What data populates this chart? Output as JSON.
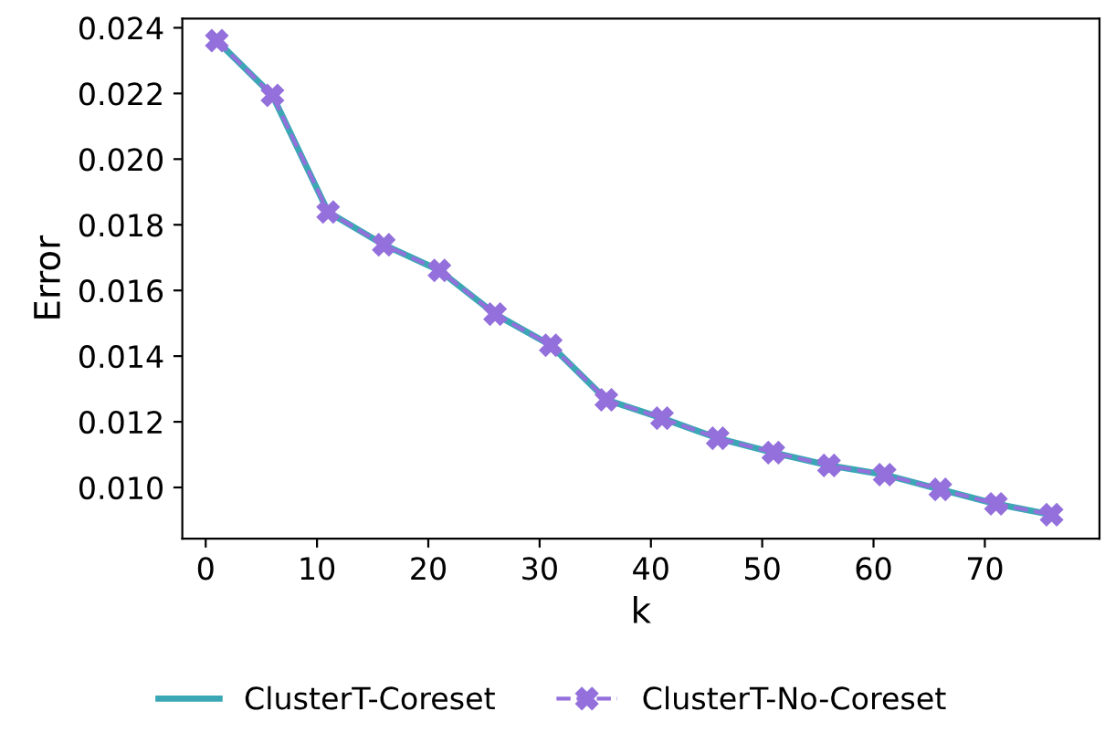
{
  "chart_data": {
    "type": "line",
    "xlabel": "k",
    "ylabel": "Error",
    "x": [
      1,
      6,
      11,
      16,
      21,
      26,
      31,
      36,
      41,
      46,
      51,
      56,
      61,
      66,
      71,
      76
    ],
    "series": [
      {
        "name": "ClusterT-Coreset",
        "color": "#3ba7b5",
        "marker": "none",
        "line_style": "solid",
        "values": [
          0.02361,
          0.02194,
          0.01839,
          0.01739,
          0.01661,
          0.01528,
          0.01433,
          0.01267,
          0.01211,
          0.0115,
          0.01106,
          0.01067,
          0.01039,
          0.00994,
          0.0095,
          0.00917
        ]
      },
      {
        "name": "ClusterT-No-Coreset",
        "color": "#9370db",
        "marker": "cross",
        "line_style": "dashed",
        "values": [
          0.02361,
          0.02194,
          0.01839,
          0.01739,
          0.01661,
          0.01528,
          0.01433,
          0.01267,
          0.01211,
          0.0115,
          0.01106,
          0.01067,
          0.01039,
          0.00994,
          0.0095,
          0.00917
        ]
      }
    ],
    "xlim": [
      -2.1,
      80.3
    ],
    "ylim": [
      0.00844,
      0.02428
    ],
    "xticks": [
      0,
      10,
      20,
      30,
      40,
      50,
      60,
      70
    ],
    "yticks": [
      {
        "value": 0.01,
        "label": "0.010"
      },
      {
        "value": 0.012,
        "label": "0.012"
      },
      {
        "value": 0.014,
        "label": "0.014"
      },
      {
        "value": 0.016,
        "label": "0.016"
      },
      {
        "value": 0.018,
        "label": "0.018"
      },
      {
        "value": 0.02,
        "label": "0.020"
      },
      {
        "value": 0.022,
        "label": "0.022"
      },
      {
        "value": 0.024,
        "label": "0.024"
      }
    ],
    "grid": false,
    "legend": "bottom"
  }
}
